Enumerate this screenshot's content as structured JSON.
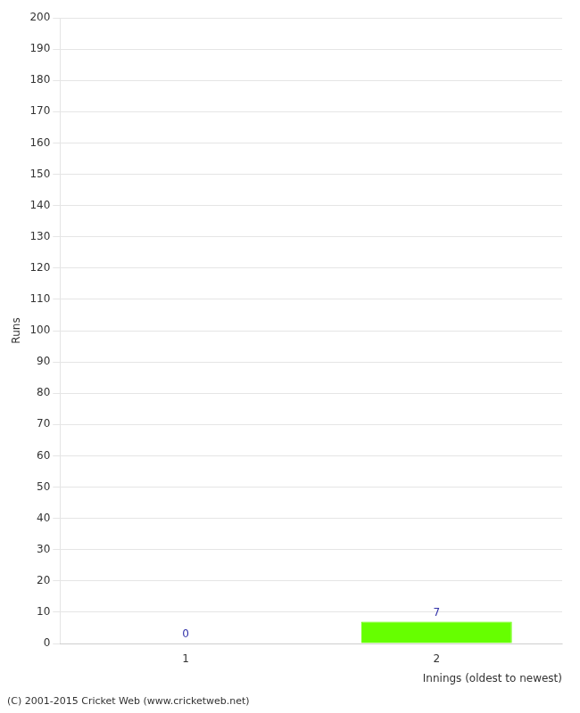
{
  "chart_data": {
    "type": "bar",
    "categories": [
      "1",
      "2"
    ],
    "values": [
      0,
      7
    ],
    "colors": [
      "#66ff00",
      "#66ff00"
    ],
    "xlabel": "Innings (oldest to newest)",
    "ylabel": "Runs",
    "ylim": [
      0,
      200
    ],
    "yticks": [
      0,
      10,
      20,
      30,
      40,
      50,
      60,
      70,
      80,
      90,
      100,
      110,
      120,
      130,
      140,
      150,
      160,
      170,
      180,
      190,
      200
    ],
    "grid": true,
    "data_labels": true,
    "footer": "(C) 2001-2015 Cricket Web (www.cricketweb.net)"
  }
}
